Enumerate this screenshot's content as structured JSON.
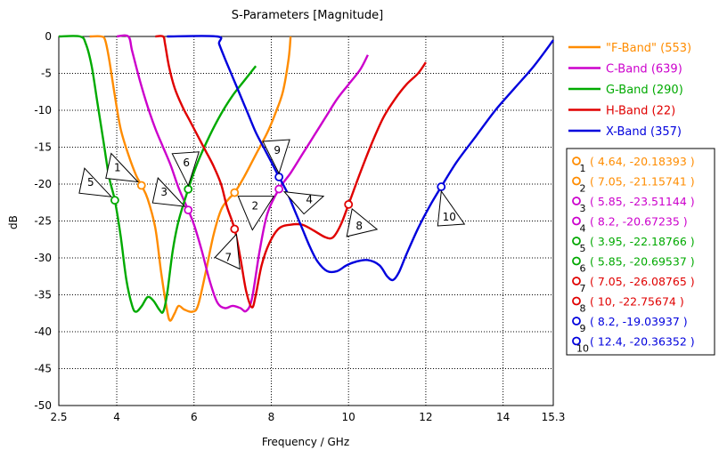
{
  "chart_data": {
    "type": "line",
    "title": "S-Parameters [Magnitude]",
    "xlabel": "Frequency / GHz",
    "ylabel": "dB",
    "xlim": [
      2.5,
      15.3
    ],
    "ylim": [
      -50,
      0
    ],
    "xticks": [
      "2.5",
      "4",
      "6",
      "8",
      "10",
      "12",
      "14",
      "15.3"
    ],
    "xtick_values": [
      2.5,
      4,
      6,
      8,
      10,
      12,
      14,
      15.3
    ],
    "yticks": [
      "0",
      "-5",
      "-10",
      "-15",
      "-20",
      "-25",
      "-30",
      "-35",
      "-40",
      "-45",
      "-50"
    ],
    "ytick_values": [
      0,
      -5,
      -10,
      -15,
      -20,
      -25,
      -30,
      -35,
      -40,
      -45,
      -50
    ],
    "grid": true,
    "legend_position": "right",
    "series": [
      {
        "name": "\"F-Band\" (553)",
        "color": "#ff8c00",
        "points": [
          [
            3.3,
            0
          ],
          [
            3.6,
            0
          ],
          [
            3.7,
            -0.5
          ],
          [
            3.8,
            -3
          ],
          [
            3.95,
            -8
          ],
          [
            4.1,
            -12.5
          ],
          [
            4.3,
            -16
          ],
          [
            4.5,
            -18.8
          ],
          [
            4.64,
            -20.18
          ],
          [
            4.8,
            -22
          ],
          [
            5.0,
            -26
          ],
          [
            5.15,
            -32
          ],
          [
            5.3,
            -37
          ],
          [
            5.38,
            -38.5
          ],
          [
            5.5,
            -37.5
          ],
          [
            5.6,
            -36.5
          ],
          [
            5.75,
            -37
          ],
          [
            5.95,
            -37.3
          ],
          [
            6.1,
            -36.5
          ],
          [
            6.3,
            -32
          ],
          [
            6.5,
            -27
          ],
          [
            6.7,
            -23.5
          ],
          [
            6.9,
            -22
          ],
          [
            7.05,
            -21.16
          ],
          [
            7.3,
            -19
          ],
          [
            7.6,
            -16
          ],
          [
            7.9,
            -13
          ],
          [
            8.1,
            -10.5
          ],
          [
            8.3,
            -7.5
          ],
          [
            8.45,
            -3
          ],
          [
            8.5,
            0
          ]
        ]
      },
      {
        "name": "C-Band (639)",
        "color": "#cc00cc",
        "points": [
          [
            4.0,
            0
          ],
          [
            4.3,
            0
          ],
          [
            4.4,
            -2
          ],
          [
            4.6,
            -6
          ],
          [
            4.8,
            -9.5
          ],
          [
            5.0,
            -12.5
          ],
          [
            5.2,
            -15
          ],
          [
            5.4,
            -17.5
          ],
          [
            5.6,
            -20.5
          ],
          [
            5.85,
            -23.51
          ],
          [
            6.0,
            -25.5
          ],
          [
            6.2,
            -29
          ],
          [
            6.4,
            -33
          ],
          [
            6.6,
            -36
          ],
          [
            6.8,
            -36.8
          ],
          [
            7.0,
            -36.5
          ],
          [
            7.2,
            -36.8
          ],
          [
            7.35,
            -37.2
          ],
          [
            7.5,
            -35.5
          ],
          [
            7.7,
            -29
          ],
          [
            7.9,
            -24
          ],
          [
            8.2,
            -20.67
          ],
          [
            8.5,
            -18.5
          ],
          [
            8.8,
            -16
          ],
          [
            9.1,
            -13.5
          ],
          [
            9.4,
            -11
          ],
          [
            9.7,
            -8.5
          ],
          [
            10.0,
            -6.5
          ],
          [
            10.3,
            -4.5
          ],
          [
            10.5,
            -2.5
          ]
        ]
      },
      {
        "name": "G-Band (290)",
        "color": "#00aa00",
        "points": [
          [
            2.5,
            0
          ],
          [
            3.05,
            0
          ],
          [
            3.2,
            -1
          ],
          [
            3.35,
            -4
          ],
          [
            3.5,
            -9
          ],
          [
            3.65,
            -14
          ],
          [
            3.8,
            -19
          ],
          [
            3.95,
            -22.19
          ],
          [
            4.1,
            -27
          ],
          [
            4.25,
            -33
          ],
          [
            4.4,
            -36.5
          ],
          [
            4.5,
            -37.3
          ],
          [
            4.65,
            -36.5
          ],
          [
            4.8,
            -35.3
          ],
          [
            4.95,
            -35.8
          ],
          [
            5.1,
            -37
          ],
          [
            5.2,
            -37.3
          ],
          [
            5.3,
            -35
          ],
          [
            5.45,
            -29
          ],
          [
            5.6,
            -25
          ],
          [
            5.85,
            -20.7
          ],
          [
            6.1,
            -17
          ],
          [
            6.4,
            -13.5
          ],
          [
            6.7,
            -10.5
          ],
          [
            7.0,
            -8
          ],
          [
            7.3,
            -6
          ],
          [
            7.6,
            -4
          ]
        ]
      },
      {
        "name": "H-Band (22)",
        "color": "#e00000",
        "points": [
          [
            5.0,
            0
          ],
          [
            5.2,
            0
          ],
          [
            5.25,
            -1
          ],
          [
            5.35,
            -4
          ],
          [
            5.5,
            -7
          ],
          [
            5.7,
            -9.5
          ],
          [
            5.9,
            -11.5
          ],
          [
            6.1,
            -13.5
          ],
          [
            6.3,
            -15.5
          ],
          [
            6.5,
            -17.5
          ],
          [
            6.7,
            -20
          ],
          [
            6.85,
            -23
          ],
          [
            7.05,
            -26.09
          ],
          [
            7.2,
            -30
          ],
          [
            7.35,
            -34.5
          ],
          [
            7.5,
            -36.7
          ],
          [
            7.6,
            -35
          ],
          [
            7.75,
            -31
          ],
          [
            7.95,
            -28
          ],
          [
            8.2,
            -26
          ],
          [
            8.5,
            -25.5
          ],
          [
            8.8,
            -25.5
          ],
          [
            9.1,
            -26.3
          ],
          [
            9.4,
            -27.2
          ],
          [
            9.6,
            -27.2
          ],
          [
            9.8,
            -25.5
          ],
          [
            10.0,
            -22.76
          ],
          [
            10.3,
            -18.5
          ],
          [
            10.6,
            -14.5
          ],
          [
            10.9,
            -11
          ],
          [
            11.2,
            -8.5
          ],
          [
            11.5,
            -6.5
          ],
          [
            11.8,
            -5
          ],
          [
            12.0,
            -3.5
          ]
        ]
      },
      {
        "name": "X-Band (357)",
        "color": "#0000dd",
        "points": [
          [
            5.3,
            0
          ],
          [
            6.6,
            0
          ],
          [
            6.65,
            -1
          ],
          [
            6.8,
            -3
          ],
          [
            7.0,
            -5.5
          ],
          [
            7.2,
            -8
          ],
          [
            7.4,
            -10.5
          ],
          [
            7.6,
            -13
          ],
          [
            7.8,
            -15
          ],
          [
            8.0,
            -17
          ],
          [
            8.2,
            -19.04
          ],
          [
            8.4,
            -21
          ],
          [
            8.6,
            -23.5
          ],
          [
            8.8,
            -26
          ],
          [
            9.0,
            -28.5
          ],
          [
            9.2,
            -30.5
          ],
          [
            9.45,
            -31.8
          ],
          [
            9.7,
            -31.8
          ],
          [
            9.95,
            -31
          ],
          [
            10.2,
            -30.5
          ],
          [
            10.5,
            -30.3
          ],
          [
            10.8,
            -31
          ],
          [
            11.0,
            -32.5
          ],
          [
            11.15,
            -33
          ],
          [
            11.3,
            -32
          ],
          [
            11.5,
            -29.5
          ],
          [
            11.8,
            -26
          ],
          [
            12.1,
            -23
          ],
          [
            12.4,
            -20.36
          ],
          [
            12.8,
            -17
          ],
          [
            13.3,
            -13.5
          ],
          [
            13.8,
            -10
          ],
          [
            14.3,
            -7
          ],
          [
            14.8,
            -4
          ],
          [
            15.3,
            -0.5
          ]
        ]
      }
    ],
    "markers": [
      {
        "id": "1",
        "series": 0,
        "x": 4.64,
        "y": -20.18393,
        "label": "( 4.64, -20.18393 )",
        "flag_direction": "left"
      },
      {
        "id": "2",
        "series": 0,
        "x": 7.05,
        "y": -21.15741,
        "label": "( 7.05, -21.15741 )",
        "flag_direction": "right"
      },
      {
        "id": "3",
        "series": 1,
        "x": 5.85,
        "y": -23.51144,
        "label": "( 5.85, -23.51144 )",
        "flag_direction": "left"
      },
      {
        "id": "4",
        "series": 1,
        "x": 8.2,
        "y": -20.67235,
        "label": "( 8.2, -20.67235 )",
        "flag_direction": "right"
      },
      {
        "id": "5",
        "series": 2,
        "x": 3.95,
        "y": -22.18766,
        "label": "( 3.95, -22.18766 )",
        "flag_direction": "left"
      },
      {
        "id": "6",
        "series": 2,
        "x": 5.85,
        "y": -20.69537,
        "label": "( 5.85, -20.69537 )",
        "flag_direction": "up"
      },
      {
        "id": "7",
        "series": 3,
        "x": 7.05,
        "y": -26.08765,
        "label": "( 7.05, -26.08765 )",
        "flag_direction": "down"
      },
      {
        "id": "8",
        "series": 3,
        "x": 10,
        "y": -22.75674,
        "label": "( 10, -22.75674 )",
        "flag_direction": "down"
      },
      {
        "id": "9",
        "series": 4,
        "x": 8.2,
        "y": -19.03937,
        "label": "( 8.2, -19.03937 )",
        "flag_direction": "up"
      },
      {
        "id": "10",
        "series": 4,
        "x": 12.4,
        "y": -20.36352,
        "label": "( 12.4, -20.36352 )",
        "flag_direction": "down"
      }
    ]
  }
}
